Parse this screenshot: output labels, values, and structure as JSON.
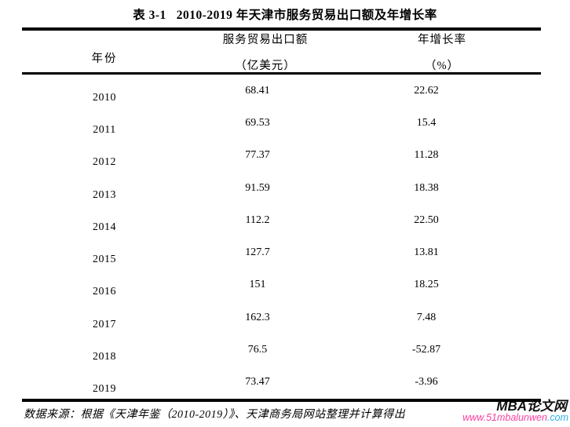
{
  "title": {
    "label": "表 3-1",
    "text": "2010-2019 年天津市服务贸易出口额及年增长率"
  },
  "table": {
    "columns": {
      "year": "年份",
      "export_line1": "服务贸易出口额",
      "export_line2": "（亿美元）",
      "growth_line1": "年增长率",
      "growth_line2": "（%）"
    },
    "rows": [
      {
        "year": "2010",
        "export": "68.41",
        "growth": "22.62"
      },
      {
        "year": "2011",
        "export": "69.53",
        "growth": "15.4"
      },
      {
        "year": "2012",
        "export": "77.37",
        "growth": "11.28"
      },
      {
        "year": "2013",
        "export": "91.59",
        "growth": "18.38"
      },
      {
        "year": "2014",
        "export": "112.2",
        "growth": "22.50"
      },
      {
        "year": "2015",
        "export": "127.7",
        "growth": "13.81"
      },
      {
        "year": "2016",
        "export": "151",
        "growth": "18.25"
      },
      {
        "year": "2017",
        "export": "162.3",
        "growth": "7.48"
      },
      {
        "year": "2018",
        "export": "76.5",
        "growth": "-52.87"
      },
      {
        "year": "2019",
        "export": "73.47",
        "growth": "-3.96"
      }
    ]
  },
  "footer": {
    "source": "数据来源：根据《天津年鉴（2010-2019）》、天津商务局网站整理并计算得出"
  },
  "watermark": {
    "site_name": "MBA论文网",
    "url_main": "www.51mbalunwen",
    "url_suffix": ".com",
    "url_main_color": "#f9419f",
    "url_suffix_color": "#2bb2e8",
    "name_color": "#111111"
  },
  "chart_data": {
    "type": "table",
    "title": "表 3-1 2010-2019 年天津市服务贸易出口额及年增长率",
    "categories": [
      "2010",
      "2011",
      "2012",
      "2013",
      "2014",
      "2015",
      "2016",
      "2017",
      "2018",
      "2019"
    ],
    "series": [
      {
        "name": "服务贸易出口额（亿美元）",
        "values": [
          68.41,
          69.53,
          77.37,
          91.59,
          112.2,
          127.7,
          151,
          162.3,
          76.5,
          73.47
        ]
      },
      {
        "name": "年增长率（%）",
        "values": [
          22.62,
          15.4,
          11.28,
          18.38,
          22.5,
          13.81,
          18.25,
          7.48,
          -52.87,
          -3.96
        ]
      }
    ]
  }
}
